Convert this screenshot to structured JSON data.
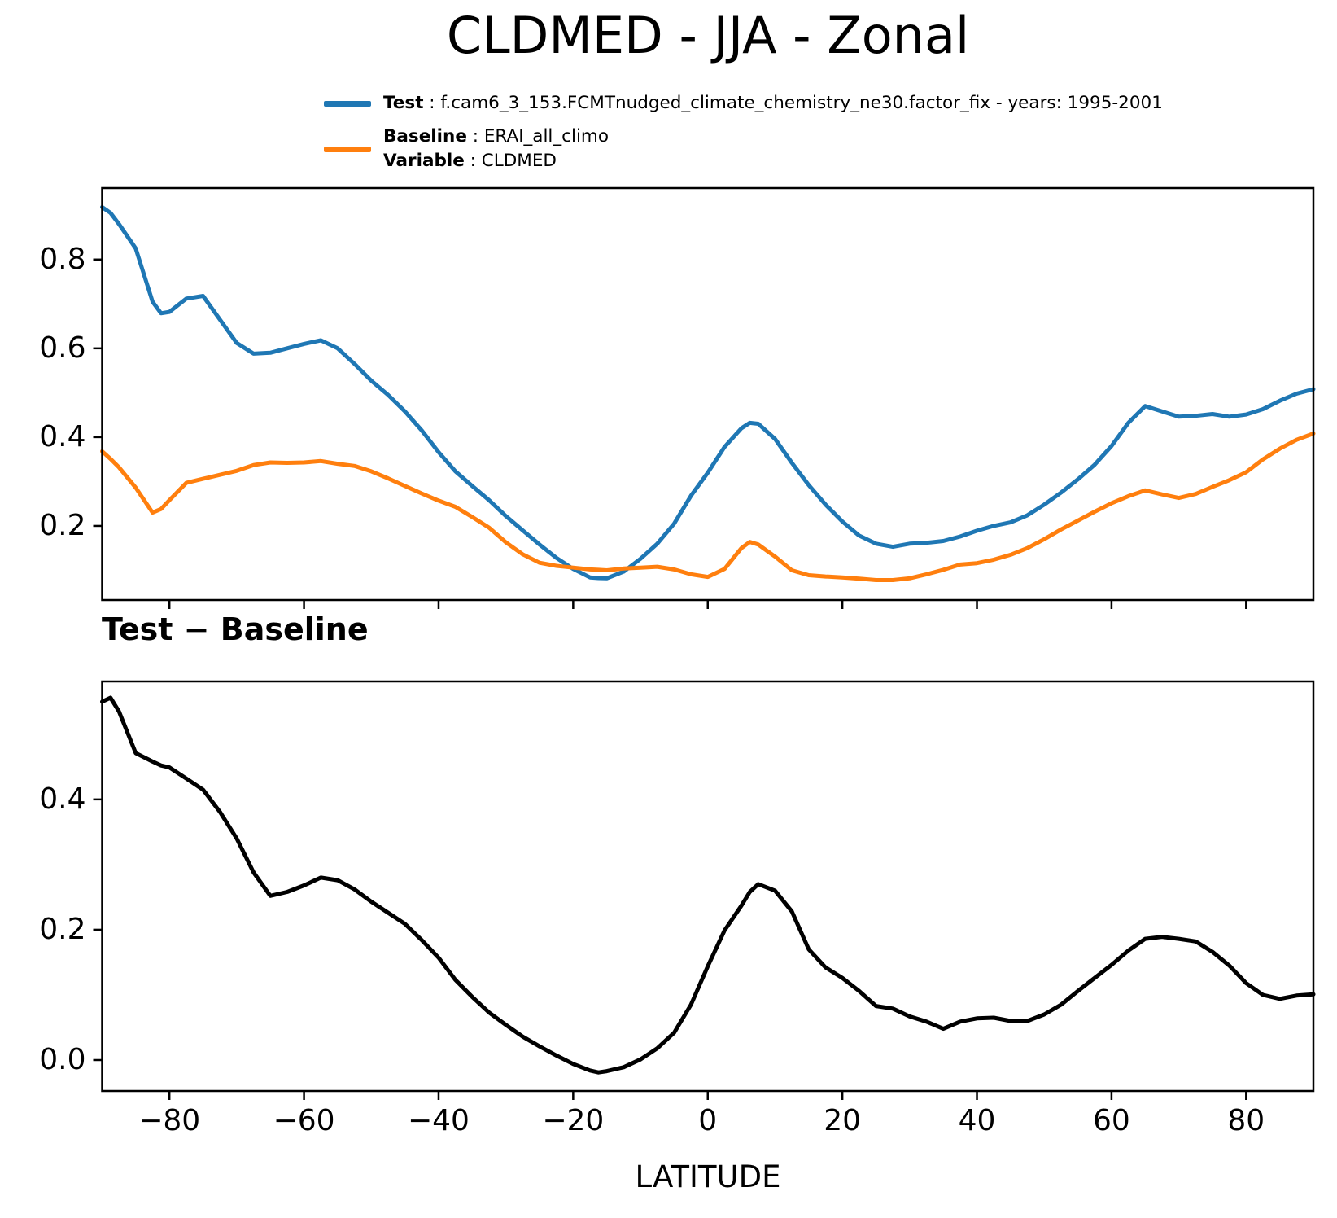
{
  "title": "CLDMED - JJA - Zonal",
  "legend": {
    "sep": " : ",
    "test": {
      "label": "Test",
      "value": "f.cam6_3_153.FCMTnudged_climate_chemistry_ne30.factor_fix - years: 1995-2001",
      "color": "#1f77b4"
    },
    "baseline": {
      "label": "Baseline",
      "value": "ERAI_all_climo",
      "color": "#ff7f0e"
    },
    "variable": {
      "label": "Variable",
      "value": "CLDMED"
    }
  },
  "colors": {
    "test": "#1f77b4",
    "baseline": "#ff7f0e",
    "difference": "#000000",
    "axes": "#000000"
  },
  "chart_data": {
    "type": "line",
    "title": "CLDMED - JJA - Zonal",
    "xlabel": "LATITUDE",
    "legend_position": "upper center",
    "grid": false,
    "xlim": [
      -90,
      90
    ],
    "xticks": [
      -80,
      -60,
      -40,
      -20,
      0,
      20,
      40,
      60,
      80
    ],
    "xtick_labels": [
      "−80",
      "−60",
      "−40",
      "−20",
      "0",
      "20",
      "40",
      "60",
      "80"
    ],
    "x": [
      -90,
      -88.75,
      -87.5,
      -85,
      -82.5,
      -81.25,
      -80,
      -77.5,
      -75,
      -72.5,
      -70,
      -67.5,
      -65,
      -62.5,
      -60,
      -57.5,
      -55,
      -52.5,
      -50,
      -47.5,
      -45,
      -42.5,
      -40,
      -37.5,
      -35,
      -32.5,
      -30,
      -27.5,
      -25,
      -22.5,
      -20,
      -17.5,
      -16.25,
      -15,
      -12.5,
      -10,
      -7.5,
      -5,
      -2.5,
      0,
      2.5,
      5,
      6.25,
      7.5,
      10,
      12.5,
      15,
      17.5,
      20,
      22.5,
      25,
      27.5,
      30,
      32.5,
      35,
      37.5,
      40,
      42.5,
      45,
      47.5,
      50,
      52.5,
      55,
      57.5,
      60,
      62.5,
      65,
      67.5,
      70,
      72.5,
      75,
      77.5,
      80,
      82.5,
      85,
      87.5,
      90
    ],
    "panels": [
      {
        "id": "comparison",
        "title": "",
        "ylim": [
          0.033,
          0.961
        ],
        "yticks": [
          0.2,
          0.4,
          0.6,
          0.8
        ],
        "ytick_labels": [
          "0.2",
          "0.4",
          "0.6",
          "0.8"
        ],
        "show_xtick_labels": false,
        "series": [
          {
            "name": "Test",
            "key": "test",
            "color": "#1f77b4",
            "linewidth": 5
          },
          {
            "name": "Baseline",
            "key": "baseline",
            "color": "#ff7f0e",
            "linewidth": 5
          }
        ]
      },
      {
        "id": "difference",
        "title": "Test − Baseline",
        "ylim": [
          -0.0475,
          0.581
        ],
        "yticks": [
          0.0,
          0.2,
          0.4
        ],
        "ytick_labels": [
          "0.0",
          "0.2",
          "0.4"
        ],
        "show_xtick_labels": true,
        "series": [
          {
            "name": "Test − Baseline",
            "key": "diff",
            "color": "#000000",
            "linewidth": 5
          }
        ]
      }
    ],
    "series_values": {
      "test": [
        0.918,
        0.905,
        0.88,
        0.825,
        0.705,
        0.679,
        0.682,
        0.712,
        0.718,
        0.665,
        0.612,
        0.588,
        0.59,
        0.6,
        0.61,
        0.618,
        0.6,
        0.565,
        0.527,
        0.495,
        0.458,
        0.415,
        0.366,
        0.323,
        0.29,
        0.258,
        0.222,
        0.19,
        0.158,
        0.128,
        0.103,
        0.084,
        0.0825,
        0.082,
        0.097,
        0.126,
        0.16,
        0.205,
        0.268,
        0.32,
        0.378,
        0.42,
        0.432,
        0.43,
        0.396,
        0.342,
        0.292,
        0.248,
        0.21,
        0.178,
        0.16,
        0.153,
        0.16,
        0.162,
        0.166,
        0.176,
        0.189,
        0.2,
        0.208,
        0.224,
        0.248,
        0.275,
        0.305,
        0.338,
        0.38,
        0.432,
        0.47,
        0.458,
        0.446,
        0.448,
        0.452,
        0.446,
        0.451,
        0.463,
        0.482,
        0.498,
        0.508
      ],
      "baseline": [
        0.368,
        0.351,
        0.332,
        0.286,
        0.23,
        0.238,
        0.258,
        0.297,
        0.306,
        0.315,
        0.324,
        0.337,
        0.343,
        0.342,
        0.343,
        0.346,
        0.34,
        0.335,
        0.323,
        0.307,
        0.29,
        0.273,
        0.257,
        0.243,
        0.22,
        0.196,
        0.163,
        0.136,
        0.117,
        0.11,
        0.106,
        0.102,
        0.101,
        0.1,
        0.104,
        0.106,
        0.108,
        0.102,
        0.091,
        0.085,
        0.103,
        0.15,
        0.164,
        0.158,
        0.131,
        0.1,
        0.089,
        0.086,
        0.084,
        0.081,
        0.078,
        0.078,
        0.082,
        0.091,
        0.101,
        0.113,
        0.116,
        0.124,
        0.135,
        0.15,
        0.17,
        0.192,
        0.212,
        0.232,
        0.251,
        0.267,
        0.28,
        0.271,
        0.263,
        0.272,
        0.288,
        0.303,
        0.321,
        0.35,
        0.374,
        0.394,
        0.408
      ],
      "diff": [
        0.55,
        0.556,
        0.535,
        0.471,
        0.458,
        0.452,
        0.449,
        0.432,
        0.415,
        0.381,
        0.34,
        0.288,
        0.252,
        0.258,
        0.268,
        0.28,
        0.276,
        0.262,
        0.243,
        0.226,
        0.209,
        0.184,
        0.157,
        0.123,
        0.097,
        0.073,
        0.054,
        0.036,
        0.021,
        0.007,
        -0.006,
        -0.016,
        -0.019,
        -0.017,
        -0.011,
        0.001,
        0.018,
        0.042,
        0.085,
        0.144,
        0.199,
        0.237,
        0.258,
        0.27,
        0.26,
        0.228,
        0.17,
        0.142,
        0.126,
        0.106,
        0.083,
        0.079,
        0.067,
        0.059,
        0.048,
        0.059,
        0.064,
        0.065,
        0.06,
        0.06,
        0.07,
        0.085,
        0.106,
        0.126,
        0.146,
        0.168,
        0.186,
        0.189,
        0.186,
        0.182,
        0.166,
        0.145,
        0.118,
        0.1,
        0.094,
        0.099,
        0.101
      ]
    }
  }
}
